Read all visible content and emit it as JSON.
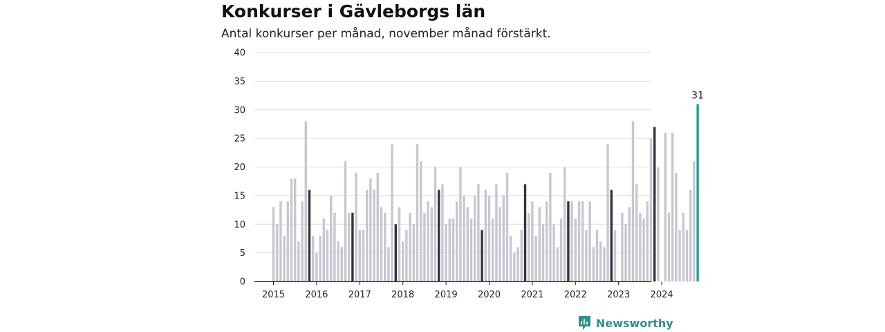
{
  "header": {
    "title": "Konkurser i Gävleborgs län",
    "subtitle": "Antal konkurser per månad, november månad förstärkt."
  },
  "brand": {
    "name": "Newsworthy",
    "icon": "newsworthy-logo-icon",
    "color": "#2f8f8a"
  },
  "colors": {
    "normal": "#c8c7d1",
    "november": "#343240",
    "latest": "#16a5a0",
    "axis": "#222222",
    "grid": "#dddddd"
  },
  "chart_data": {
    "type": "bar",
    "title": "Konkurser i Gävleborgs län",
    "subtitle": "Antal konkurser per månad, november månad förstärkt.",
    "xlabel": "",
    "ylabel": "",
    "ylim": [
      0,
      40
    ],
    "yticks": [
      0,
      5,
      10,
      15,
      20,
      25,
      30,
      35,
      40
    ],
    "grid": true,
    "x_tick_labels": [
      "2015",
      "2016",
      "2017",
      "2018",
      "2019",
      "2020",
      "2021",
      "2022",
      "2023",
      "2024"
    ],
    "start_month": "2015-01",
    "highlight_month": "november",
    "annotation": {
      "label": "31",
      "month": "2024-11"
    },
    "values": [
      13,
      10,
      14,
      8,
      14,
      18,
      18,
      7,
      14,
      28,
      16,
      8,
      5,
      8,
      11,
      9,
      15,
      12,
      7,
      6,
      21,
      12,
      12,
      19,
      9,
      9,
      16,
      18,
      16,
      19,
      13,
      12,
      6,
      24,
      10,
      13,
      7,
      9,
      12,
      10,
      24,
      21,
      12,
      14,
      13,
      20,
      16,
      17,
      10,
      11,
      11,
      14,
      20,
      15,
      13,
      11,
      15,
      17,
      9,
      16,
      15,
      11,
      17,
      13,
      15,
      19,
      8,
      5,
      6,
      9,
      17,
      12,
      14,
      8,
      13,
      10,
      14,
      19,
      10,
      6,
      11,
      20,
      14,
      14,
      11,
      14,
      14,
      9,
      14,
      6,
      9,
      7,
      6,
      24,
      16,
      9,
      0,
      12,
      10,
      13,
      28,
      17,
      12,
      11,
      14,
      25,
      27,
      20,
      0,
      26,
      12,
      26,
      19,
      9,
      12,
      9,
      16,
      21,
      31
    ]
  }
}
